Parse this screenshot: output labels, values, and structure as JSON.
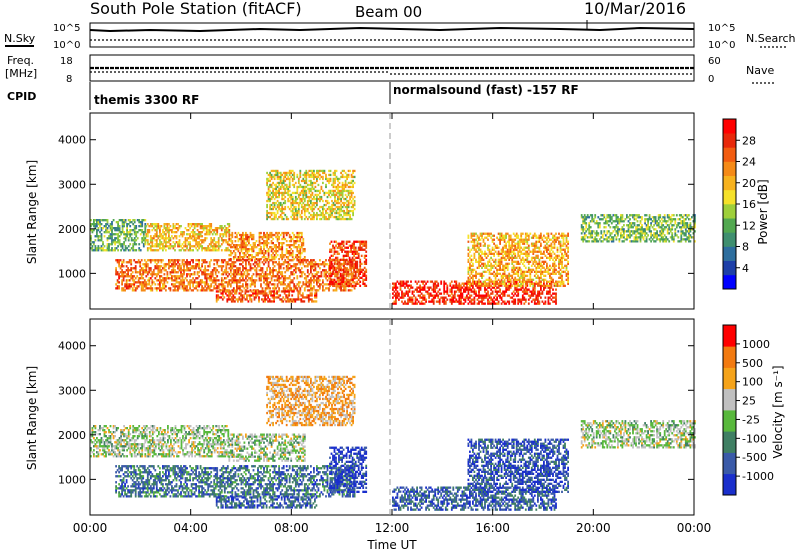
{
  "header": {
    "title": "South Pole Station (fitACF)",
    "beam": "Beam 00",
    "date": "10/Mar/2016"
  },
  "strip_labels": {
    "nsky": "N.Sky",
    "nsky_ticks": [
      "10^5",
      "10^0"
    ],
    "nsearch": "N.Search",
    "nsearch_ticks": [
      "10^5",
      "10^0"
    ],
    "freq_label_1": "Freq.",
    "freq_label_2": "[MHz]",
    "freq_ticks": [
      "18",
      "8"
    ],
    "nave": "Nave",
    "nave_ticks": [
      "60",
      "0"
    ],
    "cpid": "CPID",
    "cpid_segment_1": "themis 3300 RF",
    "cpid_segment_2": "normalsound (fast) -157 RF"
  },
  "chart_data": [
    {
      "type": "heatmap",
      "ylabel": "Slant Range [km]",
      "yticks": [
        1000,
        2000,
        3000,
        4000
      ],
      "ylim": [
        200,
        4600
      ],
      "xlim": [
        0,
        24
      ],
      "colorbar": {
        "label": "Power [dB]",
        "ticks": [
          "28",
          "24",
          "20",
          "16",
          "12",
          "8",
          "4"
        ],
        "colors": [
          "#0000ff",
          "#1d3fa8",
          "#2e6e9e",
          "#3f8f6f",
          "#52a850",
          "#9ecf3a",
          "#f5e12a",
          "#f7b21e",
          "#f58a17",
          "#f25c10",
          "#e8280a",
          "#ff0000"
        ]
      },
      "bands": [
        {
          "start": 0.0,
          "end": 2.2,
          "range": [
            1500,
            2200
          ],
          "level": 0.35
        },
        {
          "start": 2.2,
          "end": 5.5,
          "range": [
            1500,
            2100
          ],
          "level": 0.6
        },
        {
          "start": 5.5,
          "end": 8.5,
          "range": [
            1300,
            1900
          ],
          "level": 0.7
        },
        {
          "start": 1.0,
          "end": 10.5,
          "range": [
            600,
            1300
          ],
          "level": 0.75
        },
        {
          "start": 5.0,
          "end": 9.0,
          "range": [
            350,
            600
          ],
          "level": 0.8
        },
        {
          "start": 9.5,
          "end": 11.0,
          "range": [
            700,
            1700
          ],
          "level": 0.85
        },
        {
          "start": 12.0,
          "end": 18.5,
          "range": [
            300,
            800
          ],
          "level": 0.9
        },
        {
          "start": 15.0,
          "end": 19.0,
          "range": [
            700,
            1900
          ],
          "level": 0.65
        },
        {
          "start": 19.5,
          "end": 24.0,
          "range": [
            1700,
            2300
          ],
          "level": 0.4
        },
        {
          "start": 7.0,
          "end": 10.5,
          "range": [
            2200,
            3300
          ],
          "level": 0.55
        }
      ]
    },
    {
      "type": "heatmap",
      "ylabel": "Slant Range [km]",
      "xlabel": "Time UT",
      "xticks": [
        "00:00",
        "04:00",
        "08:00",
        "12:00",
        "16:00",
        "20:00",
        "00:00"
      ],
      "yticks": [
        1000,
        2000,
        3000,
        4000
      ],
      "ylim": [
        200,
        4600
      ],
      "xlim": [
        0,
        24
      ],
      "colorbar": {
        "label": "Velocity [m s⁻¹]",
        "ticks": [
          "1000",
          "500",
          "100",
          "25",
          "-25",
          "-100",
          "-500",
          "-1000"
        ],
        "colors": [
          "#1a2fcc",
          "#3a5aa8",
          "#3f7f63",
          "#58b83c",
          "#c0c0c0",
          "#f5a31a",
          "#f27a10",
          "#ff0000"
        ]
      },
      "bands": [
        {
          "start": 0.0,
          "end": 5.5,
          "range": [
            1500,
            2200
          ],
          "level": 0.5
        },
        {
          "start": 5.5,
          "end": 8.5,
          "range": [
            1400,
            2000
          ],
          "level": 0.5
        },
        {
          "start": 1.0,
          "end": 10.5,
          "range": [
            600,
            1300
          ],
          "level": 0.25
        },
        {
          "start": 5.0,
          "end": 9.0,
          "range": [
            350,
            600
          ],
          "level": 0.2
        },
        {
          "start": 9.5,
          "end": 11.0,
          "range": [
            700,
            1700
          ],
          "level": 0.1
        },
        {
          "start": 12.0,
          "end": 18.5,
          "range": [
            300,
            800
          ],
          "level": 0.2
        },
        {
          "start": 15.0,
          "end": 19.0,
          "range": [
            700,
            1900
          ],
          "level": 0.15
        },
        {
          "start": 19.5,
          "end": 24.0,
          "range": [
            1700,
            2300
          ],
          "level": 0.5
        },
        {
          "start": 7.0,
          "end": 10.5,
          "range": [
            2200,
            3300
          ],
          "level": 0.7
        }
      ]
    }
  ]
}
